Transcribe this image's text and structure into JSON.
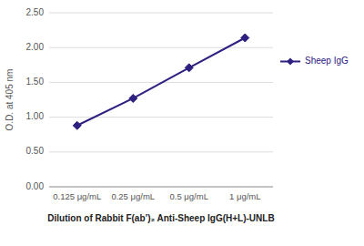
{
  "chart_data": {
    "type": "line",
    "categories": [
      "0.125 μg/mL",
      "0.25 μg/mL",
      "0.5 μg/mL",
      "1 μg/mL"
    ],
    "series": [
      {
        "name": "Sheep IgG",
        "color": "#2d2080",
        "marker": "diamond",
        "values": [
          0.88,
          1.27,
          1.71,
          2.14
        ]
      }
    ],
    "xlabel": "Dilution of Rabbit F(ab’)₂ Anti-Sheep IgG(H+L)-UNLB",
    "ylabel": "O.D. at 405 nm",
    "ylim": [
      0.0,
      2.5
    ],
    "yticks": [
      {
        "value": 0.0,
        "label": "0.00"
      },
      {
        "value": 0.5,
        "label": "0.50"
      },
      {
        "value": 1.0,
        "label": "1.00"
      },
      {
        "value": 1.5,
        "label": "1.50"
      },
      {
        "value": 2.0,
        "label": "2.00"
      },
      {
        "value": 2.5,
        "label": "2.50"
      }
    ],
    "grid": true,
    "legend": "right"
  }
}
